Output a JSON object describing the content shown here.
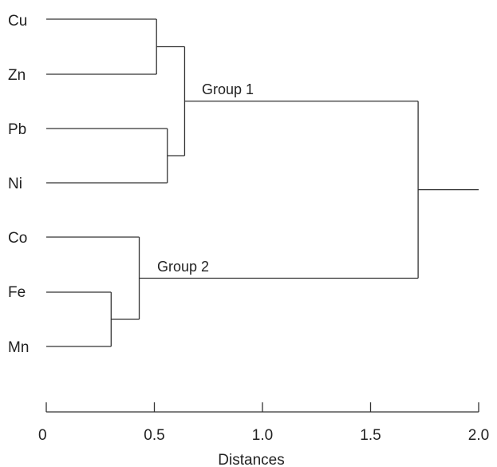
{
  "leaves": [
    "Cu",
    "Zn",
    "Pb",
    "Ni",
    "Co",
    "Fe",
    "Mn"
  ],
  "group_labels": [
    "Group 1",
    "Group 2"
  ],
  "axis": {
    "title": "Distances",
    "min": 0,
    "max": 2.0,
    "ticks": [
      "0",
      "0.5",
      "1.0",
      "1.5",
      "2.0"
    ],
    "tick_values": [
      0,
      0.5,
      1.0,
      1.5,
      2.0
    ]
  },
  "merges": [
    {
      "a": "Cu",
      "b": "Zn",
      "distance": 0.51
    },
    {
      "a": "Pb",
      "b": "Ni",
      "distance": 0.56
    },
    {
      "a": "Cu-Zn",
      "b": "Pb-Ni",
      "distance": 0.64,
      "label": "Group 1"
    },
    {
      "a": "Fe",
      "b": "Mn",
      "distance": 0.3
    },
    {
      "a": "Co",
      "b": "Fe-Mn",
      "distance": 0.43,
      "label": "Group 2"
    },
    {
      "a": "Group 1",
      "b": "Group 2",
      "distance": 1.72
    }
  ],
  "root_stub_end": 2.0
}
